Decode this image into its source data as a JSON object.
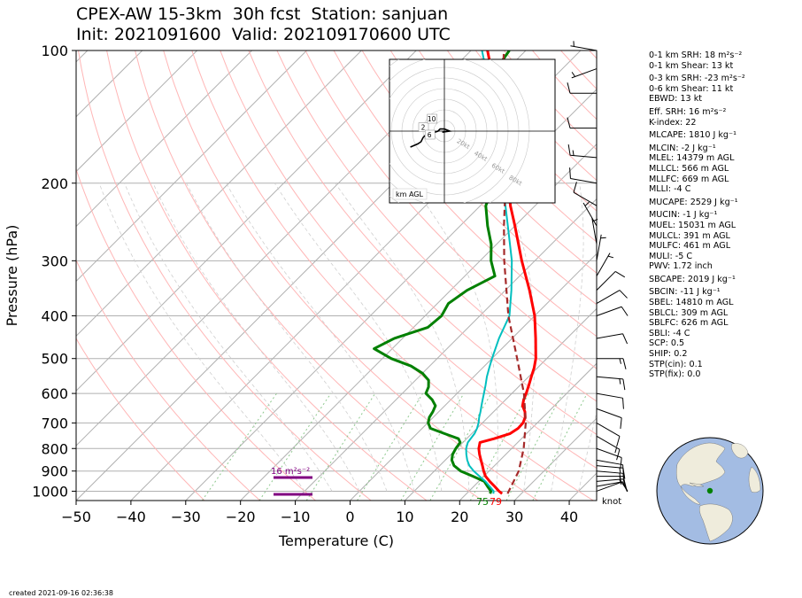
{
  "title": {
    "line1": "CPEX-AW 15-3km  30h fcst  Station: sanjuan",
    "line2": "Init: 2021091600  Valid: 202109170600 UTC"
  },
  "axes": {
    "xlabel": "Temperature (C)",
    "ylabel": "Pressure (hPa)",
    "x_ticks": [
      "−50",
      "−40",
      "−30",
      "−20",
      "−10",
      "0",
      "10",
      "20",
      "30",
      "40"
    ],
    "y_ticks": [
      "100",
      "200",
      "300",
      "400",
      "500",
      "600",
      "700",
      "800",
      "900",
      "1000"
    ]
  },
  "annotations": {
    "srh_label": "16 m²s⁻²",
    "surface_dewpoint": "75",
    "surface_temp": "79",
    "barb_units": "knot",
    "hodo_units": "km AGL",
    "hodo_ring_labels": [
      "20kt",
      "40kt",
      "60kt",
      "80kt"
    ],
    "hodo_height_labels": [
      "2",
      "6",
      "10"
    ]
  },
  "parameters": [
    "0-1 km SRH: 18 m²s⁻²",
    "0-1 km Shear: 13 kt",
    "0-3 km SRH: -23 m²s⁻²",
    "0-6 km Shear: 11 kt",
    "EBWD: 13 kt",
    "Eff. SRH: 16 m²s⁻²",
    "K-index: 22",
    "MLCAPE: 1810 J kg⁻¹",
    "MLCIN: -2 J kg⁻¹",
    "MLEL: 14379 m AGL",
    "MLLCL: 566 m AGL",
    "MLLFC: 669 m AGL",
    "MLLI: -4 C",
    "MUCAPE: 2529 J kg⁻¹",
    "MUCIN: -1 J kg⁻¹",
    "MUEL: 15031 m AGL",
    "MULCL: 391 m AGL",
    "MULFC: 461 m AGL",
    "MULI: -5 C",
    "PWV: 1.72 inch",
    "SBCAPE: 2019 J kg⁻¹",
    "SBCIN: -11 J kg⁻¹",
    "SBEL: 14810 m AGL",
    "SBLCL: 309 m AGL",
    "SBLFC: 626 m AGL",
    "SBLI: -4 C",
    "SCP: 0.5",
    "SHIP: 0.2",
    "STP(cin): 0.1",
    "STP(fix): 0.0"
  ],
  "created": "created 2021-09-16 02:36:38",
  "colors": {
    "temperature": "#ff0000",
    "dewpoint": "#008000",
    "wetbulb": "#00bfbf",
    "parcel": "#a52a2a",
    "srh_bar": "#800080",
    "isotherm": "#b0b0b0",
    "dry_adiabat": "#ffb6b6",
    "mixing_ratio": "#8fc98f",
    "globe_ocean": "#a3bce3",
    "globe_land": "#efecdc"
  },
  "chart_data": {
    "type": "skewt",
    "xlim": [
      -50,
      45
    ],
    "ylim": [
      1050,
      100
    ],
    "y_scale": "log",
    "grid": true,
    "series": [
      {
        "name": "T",
        "points": [
          [
            1013,
            26.5
          ],
          [
            1000,
            25.5
          ],
          [
            975,
            23.8
          ],
          [
            950,
            22.0
          ],
          [
            925,
            20.3
          ],
          [
            900,
            19.0
          ],
          [
            875,
            17.8
          ],
          [
            850,
            16.5
          ],
          [
            825,
            15.2
          ],
          [
            800,
            14.0
          ],
          [
            775,
            13.1
          ],
          [
            760,
            15.0
          ],
          [
            740,
            17.0
          ],
          [
            720,
            17.5
          ],
          [
            700,
            17.4
          ],
          [
            680,
            16.8
          ],
          [
            660,
            15.7
          ],
          [
            640,
            14.2
          ],
          [
            620,
            13.3
          ],
          [
            600,
            12.6
          ],
          [
            575,
            11.6
          ],
          [
            550,
            10.5
          ],
          [
            525,
            9.4
          ],
          [
            500,
            8.0
          ],
          [
            450,
            4.3
          ],
          [
            400,
            0.0
          ],
          [
            350,
            -5.6
          ],
          [
            300,
            -12.4
          ],
          [
            250,
            -20.0
          ],
          [
            225,
            -24.5
          ],
          [
            200,
            -29.0
          ],
          [
            175,
            -34.5
          ],
          [
            150,
            -40.5
          ],
          [
            125,
            -48.0
          ],
          [
            110,
            -53.0
          ],
          [
            100,
            -57.0
          ]
        ]
      },
      {
        "name": "Td",
        "points": [
          [
            1013,
            24.3
          ],
          [
            1000,
            24.0
          ],
          [
            975,
            22.5
          ],
          [
            950,
            21.0
          ],
          [
            925,
            18.0
          ],
          [
            900,
            14.8
          ],
          [
            875,
            12.6
          ],
          [
            850,
            11.2
          ],
          [
            825,
            10.3
          ],
          [
            800,
            9.8
          ],
          [
            775,
            9.5
          ],
          [
            760,
            8.5
          ],
          [
            740,
            5.0
          ],
          [
            720,
            1.5
          ],
          [
            700,
            0.1
          ],
          [
            680,
            -0.7
          ],
          [
            660,
            -1.1
          ],
          [
            640,
            -1.7
          ],
          [
            620,
            -3.4
          ],
          [
            600,
            -5.7
          ],
          [
            580,
            -6.4
          ],
          [
            560,
            -7.6
          ],
          [
            540,
            -10.0
          ],
          [
            520,
            -13.4
          ],
          [
            500,
            -18.4
          ],
          [
            475,
            -23.3
          ],
          [
            450,
            -21.5
          ],
          [
            425,
            -17.4
          ],
          [
            400,
            -17.0
          ],
          [
            375,
            -18.0
          ],
          [
            350,
            -17.0
          ],
          [
            325,
            -14.5
          ],
          [
            300,
            -18.0
          ],
          [
            275,
            -21.0
          ],
          [
            250,
            -25.0
          ],
          [
            225,
            -29.0
          ],
          [
            200,
            -31.5
          ],
          [
            175,
            -37.5
          ],
          [
            150,
            -43.5
          ],
          [
            125,
            -50.5
          ],
          [
            110,
            -52.0
          ],
          [
            100,
            -53.0
          ]
        ]
      },
      {
        "name": "Tw",
        "points": [
          [
            1013,
            24.9
          ],
          [
            1000,
            24.5
          ],
          [
            975,
            22.9
          ],
          [
            950,
            21.2
          ],
          [
            925,
            19.2
          ],
          [
            900,
            17.2
          ],
          [
            875,
            15.4
          ],
          [
            850,
            14.0
          ],
          [
            825,
            12.8
          ],
          [
            800,
            11.7
          ],
          [
            775,
            10.9
          ],
          [
            740,
            10.5
          ],
          [
            720,
            10.0
          ],
          [
            700,
            9.3
          ],
          [
            680,
            8.4
          ],
          [
            660,
            7.6
          ],
          [
            640,
            6.7
          ],
          [
            620,
            5.8
          ],
          [
            600,
            4.9
          ],
          [
            575,
            3.7
          ],
          [
            550,
            2.4
          ],
          [
            525,
            1.2
          ],
          [
            500,
            0.0
          ],
          [
            450,
            -2.4
          ],
          [
            400,
            -4.6
          ],
          [
            350,
            -8.9
          ],
          [
            300,
            -14.2
          ],
          [
            250,
            -21.3
          ],
          [
            200,
            -30.0
          ],
          [
            175,
            -35.5
          ],
          [
            150,
            -42.0
          ],
          [
            125,
            -49.0
          ],
          [
            110,
            -54.0
          ],
          [
            100,
            -58.0
          ]
        ]
      },
      {
        "name": "parcel",
        "points": [
          [
            1013,
            27.5
          ],
          [
            900,
            25.4
          ],
          [
            800,
            22.2
          ],
          [
            700,
            17.9
          ],
          [
            600,
            12.2
          ],
          [
            500,
            4.6
          ],
          [
            400,
            -4.8
          ],
          [
            300,
            -15.6
          ],
          [
            250,
            -22.0
          ],
          [
            200,
            -29.5
          ],
          [
            150,
            -40.0
          ],
          [
            125,
            -46.5
          ],
          [
            100,
            -54.0
          ]
        ]
      }
    ],
    "wind_barbs_kt": [
      [
        1000,
        70,
        10
      ],
      [
        975,
        80,
        12
      ],
      [
        950,
        85,
        14
      ],
      [
        925,
        90,
        15
      ],
      [
        900,
        95,
        15
      ],
      [
        875,
        95,
        14
      ],
      [
        850,
        100,
        12
      ],
      [
        800,
        110,
        12
      ],
      [
        750,
        120,
        13
      ],
      [
        700,
        120,
        12
      ],
      [
        650,
        110,
        12
      ],
      [
        600,
        100,
        12
      ],
      [
        550,
        95,
        14
      ],
      [
        500,
        90,
        15
      ],
      [
        450,
        80,
        12
      ],
      [
        400,
        70,
        10
      ],
      [
        375,
        60,
        10
      ],
      [
        350,
        45,
        8
      ],
      [
        325,
        30,
        6
      ],
      [
        300,
        10,
        5
      ],
      [
        275,
        350,
        5
      ],
      [
        250,
        330,
        6
      ],
      [
        225,
        300,
        8
      ],
      [
        200,
        280,
        12
      ],
      [
        175,
        275,
        13
      ],
      [
        150,
        270,
        12
      ],
      [
        125,
        270,
        10
      ],
      [
        110,
        250,
        5
      ],
      [
        100,
        280,
        3
      ]
    ],
    "hodograph": {
      "range_kt": [
        -80,
        80
      ],
      "points_kt": [
        [
          -32,
          -15
        ],
        [
          -25,
          -12
        ],
        [
          -22,
          -10
        ],
        [
          -20,
          -6
        ],
        [
          -17,
          -3
        ],
        [
          -12,
          -2
        ],
        [
          -9,
          -1
        ],
        [
          -6,
          0
        ],
        [
          -4,
          2
        ],
        [
          0,
          2
        ],
        [
          5,
          0
        ],
        [
          -2,
          -1
        ]
      ]
    },
    "srh_layers": [
      {
        "label": "16 m²s⁻²",
        "bottom_hpa": 1000,
        "top_hpa": 925
      }
    ],
    "surface": {
      "dewpoint_f": 75,
      "temp_f": 79
    }
  }
}
